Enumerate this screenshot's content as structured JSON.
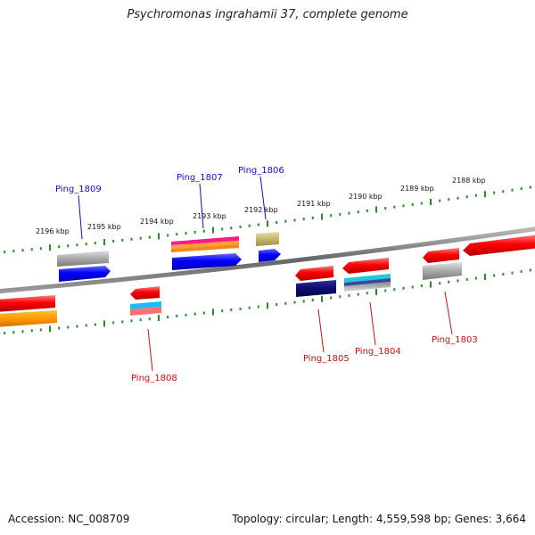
{
  "title": "Psychromonas ingrahamii 37, complete genome",
  "footer": {
    "accession": "Accession: NC_008709",
    "summary": "Topology: circular; Length: 4,559,598 bp; Genes: 3,664"
  },
  "colors": {
    "forward_label": "#1010c0",
    "reverse_label": "#c81010",
    "tick": "#2a8a2a",
    "backbone": "#7a7a7a"
  },
  "ticks": [
    "2196 kbp",
    "2195 kbp",
    "2194 kbp",
    "2193 kbp",
    "2192 kbp",
    "2191 kbp",
    "2190 kbp",
    "2189 kbp",
    "2188 kbp"
  ],
  "genes_forward": [
    "Ping_1809",
    "Ping_1807",
    "Ping_1806"
  ],
  "genes_reverse": [
    "Ping_1808",
    "Ping_1805",
    "Ping_1804",
    "Ping_1803"
  ]
}
